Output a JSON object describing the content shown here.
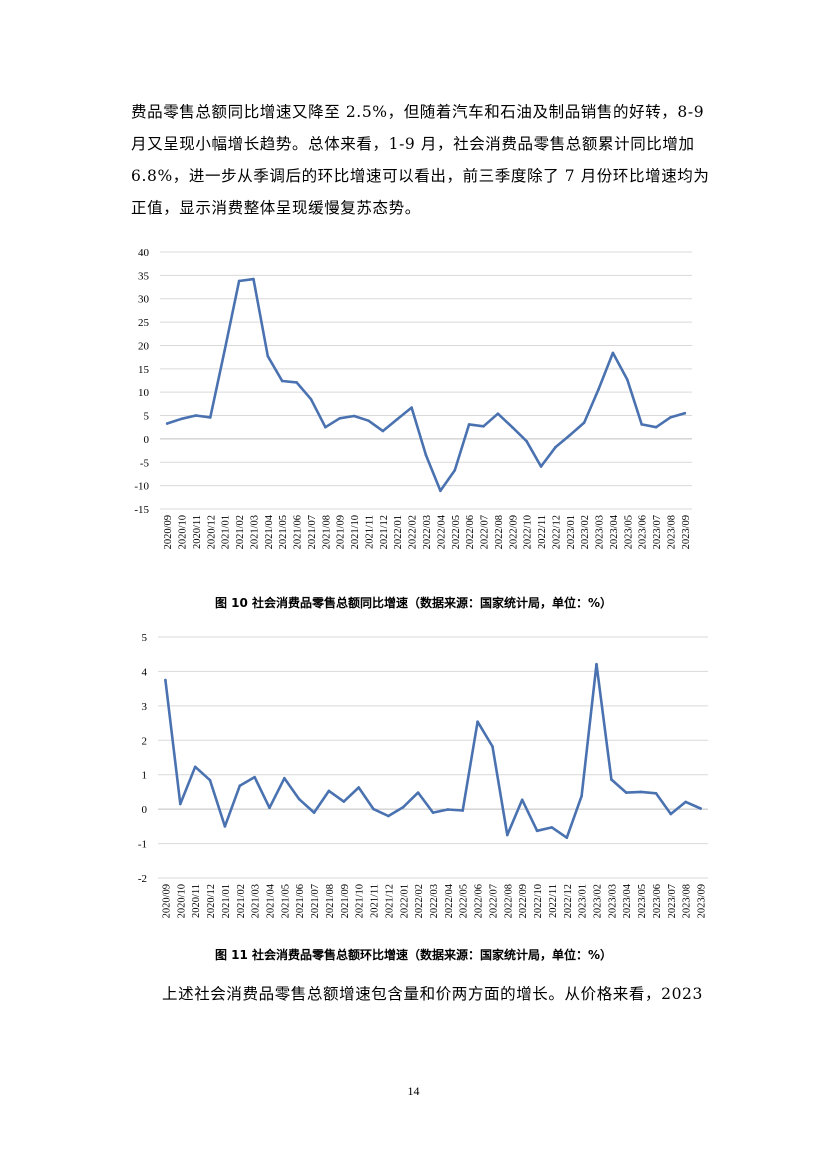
{
  "paragraph_top": "费品零售总额同比增速又降至 2.5%，但随着汽车和石油及制品销售的好转，8-9月又呈现小幅增长趋势。总体来看，1-9 月，社会消费品零售总额累计同比增加 6.8%，进一步从季调后的环比增速可以看出，前三季度除了 7 月份环比增速均为正值，显示消费整体呈现缓慢复苏态势。",
  "paragraph_bottom": "上述社会消费品零售总额增速包含量和价两方面的增长。从价格来看，2023",
  "page_number": "14",
  "colors": {
    "line": "#4a72b0",
    "grid": "#d9d9d9",
    "axis": "#bfbfbf"
  },
  "chart_data": [
    {
      "type": "line",
      "title": "图 10  社会消费品零售总额同比增速（数据来源：国家统计局，单位：%）",
      "xlabel": "",
      "ylabel": "",
      "ylim": [
        -15,
        40
      ],
      "yticks": [
        "40",
        "35",
        "30",
        "25",
        "20",
        "15",
        "10",
        "5",
        "0",
        "-5",
        "-10",
        "-15"
      ],
      "grid": true,
      "legend": "none",
      "categories": [
        "2020/09",
        "2020/10",
        "2020/11",
        "2020/12",
        "2021/01",
        "2021/02",
        "2021/03",
        "2021/04",
        "2021/05",
        "2021/06",
        "2021/07",
        "2021/08",
        "2021/09",
        "2021/10",
        "2021/11",
        "2021/12",
        "2022/01",
        "2022/02",
        "2022/03",
        "2022/04",
        "2022/05",
        "2022/06",
        "2022/07",
        "2022/08",
        "2022/09",
        "2022/10",
        "2022/11",
        "2022/12",
        "2023/01",
        "2023/02",
        "2023/03",
        "2023/04",
        "2023/05",
        "2023/06",
        "2023/07",
        "2023/08",
        "2023/09"
      ],
      "values": [
        3.3,
        4.3,
        5.0,
        4.6,
        19.0,
        33.8,
        34.2,
        17.7,
        12.4,
        12.1,
        8.5,
        2.5,
        4.4,
        4.9,
        3.9,
        1.7,
        4.2,
        6.7,
        -3.5,
        -11.1,
        -6.7,
        3.1,
        2.7,
        5.4,
        2.5,
        -0.5,
        -5.9,
        -1.8,
        0.8,
        3.5,
        10.6,
        18.4,
        12.7,
        3.1,
        2.5,
        4.6,
        5.5
      ]
    },
    {
      "type": "line",
      "title": "图 11  社会消费品零售总额环比增速（数据来源：国家统计局，单位：%）",
      "xlabel": "",
      "ylabel": "",
      "ylim": [
        -2,
        5
      ],
      "yticks": [
        "5",
        "4",
        "3",
        "2",
        "1",
        "0",
        "-1",
        "-2"
      ],
      "grid": true,
      "legend": "none",
      "categories": [
        "2020/09",
        "2020/10",
        "2020/11",
        "2020/12",
        "2021/01",
        "2021/02",
        "2021/03",
        "2021/04",
        "2021/05",
        "2021/06",
        "2021/07",
        "2021/08",
        "2021/09",
        "2021/10",
        "2021/11",
        "2021/12",
        "2022/01",
        "2022/02",
        "2022/03",
        "2022/04",
        "2022/05",
        "2022/06",
        "2022/07",
        "2022/08",
        "2022/09",
        "2022/10",
        "2022/11",
        "2022/12",
        "2023/01",
        "2023/02",
        "2023/03",
        "2023/04",
        "2023/05",
        "2023/06",
        "2023/07",
        "2023/08",
        "2023/09"
      ],
      "values": [
        3.75,
        0.15,
        1.23,
        0.84,
        -0.5,
        0.68,
        0.93,
        0.04,
        0.9,
        0.29,
        -0.1,
        0.53,
        0.22,
        0.63,
        0.0,
        -0.2,
        0.06,
        0.48,
        -0.1,
        -0.01,
        -0.04,
        2.54,
        1.82,
        -0.75,
        0.27,
        -0.63,
        -0.53,
        -0.83,
        0.38,
        4.21,
        0.86,
        0.48,
        0.5,
        0.46,
        -0.14,
        0.21,
        0.02
      ]
    }
  ]
}
